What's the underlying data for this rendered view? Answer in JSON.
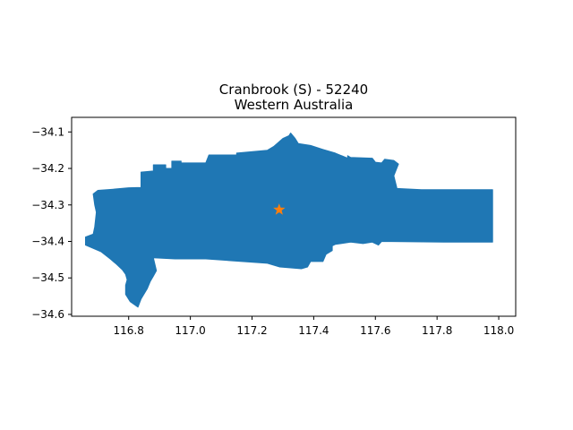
{
  "chart_data": {
    "type": "map",
    "title_line1": "Cranbrook (S) - 52240",
    "title_line2": "Western Australia",
    "xlabel": "",
    "ylabel": "",
    "xlim": [
      116.615,
      118.055
    ],
    "ylim": [
      -34.605,
      -34.06
    ],
    "x_ticks": [
      116.8,
      117.0,
      117.2,
      117.4,
      117.6,
      117.8,
      118.0
    ],
    "x_tick_labels": [
      "116.8",
      "117.0",
      "117.2",
      "117.4",
      "117.6",
      "117.8",
      "118.0"
    ],
    "y_ticks": [
      -34.1,
      -34.2,
      -34.3,
      -34.4,
      -34.5,
      -34.6
    ],
    "y_tick_labels": [
      "−34.1",
      "−34.2",
      "−34.3",
      "−34.4",
      "−34.5",
      "−34.6"
    ],
    "grid": false,
    "region_color": "#1f77b4",
    "marker_color": "#ff7f0e",
    "marker": {
      "shape": "star",
      "lon": 117.288,
      "lat": -34.313
    },
    "region_outline": [
      [
        116.7,
        -34.26
      ],
      [
        116.75,
        -34.257
      ],
      [
        116.8,
        -34.253
      ],
      [
        116.84,
        -34.252
      ],
      [
        116.84,
        -34.21
      ],
      [
        116.88,
        -34.207
      ],
      [
        116.88,
        -34.19
      ],
      [
        116.92,
        -34.19
      ],
      [
        116.92,
        -34.2
      ],
      [
        116.94,
        -34.2
      ],
      [
        116.94,
        -34.18
      ],
      [
        116.97,
        -34.18
      ],
      [
        116.97,
        -34.185
      ],
      [
        117.05,
        -34.185
      ],
      [
        117.06,
        -34.163
      ],
      [
        117.15,
        -34.163
      ],
      [
        117.15,
        -34.158
      ],
      [
        117.25,
        -34.15
      ],
      [
        117.27,
        -34.14
      ],
      [
        117.3,
        -34.118
      ],
      [
        117.32,
        -34.11
      ],
      [
        117.325,
        -34.103
      ],
      [
        117.34,
        -34.118
      ],
      [
        117.35,
        -34.132
      ],
      [
        117.39,
        -34.137
      ],
      [
        117.43,
        -34.148
      ],
      [
        117.47,
        -34.158
      ],
      [
        117.51,
        -34.172
      ],
      [
        117.51,
        -34.165
      ],
      [
        117.52,
        -34.17
      ],
      [
        117.59,
        -34.172
      ],
      [
        117.6,
        -34.183
      ],
      [
        117.62,
        -34.185
      ],
      [
        117.63,
        -34.175
      ],
      [
        117.66,
        -34.178
      ],
      [
        117.675,
        -34.188
      ],
      [
        117.66,
        -34.22
      ],
      [
        117.67,
        -34.255
      ],
      [
        117.75,
        -34.258
      ],
      [
        117.98,
        -34.258
      ],
      [
        117.98,
        -34.402
      ],
      [
        117.82,
        -34.402
      ],
      [
        117.62,
        -34.4
      ],
      [
        117.61,
        -34.41
      ],
      [
        117.59,
        -34.402
      ],
      [
        117.56,
        -34.406
      ],
      [
        117.52,
        -34.402
      ],
      [
        117.47,
        -34.408
      ],
      [
        117.46,
        -34.412
      ],
      [
        117.46,
        -34.425
      ],
      [
        117.44,
        -34.435
      ],
      [
        117.43,
        -34.455
      ],
      [
        117.39,
        -34.455
      ],
      [
        117.38,
        -34.47
      ],
      [
        117.36,
        -34.475
      ],
      [
        117.29,
        -34.47
      ],
      [
        117.25,
        -34.46
      ],
      [
        117.05,
        -34.448
      ],
      [
        116.95,
        -34.448
      ],
      [
        116.88,
        -34.445
      ],
      [
        116.89,
        -34.48
      ],
      [
        116.88,
        -34.495
      ],
      [
        116.87,
        -34.51
      ],
      [
        116.86,
        -34.53
      ],
      [
        116.84,
        -34.558
      ],
      [
        116.83,
        -34.58
      ],
      [
        116.805,
        -34.565
      ],
      [
        116.79,
        -34.545
      ],
      [
        116.79,
        -34.52
      ],
      [
        116.795,
        -34.505
      ],
      [
        116.79,
        -34.49
      ],
      [
        116.78,
        -34.478
      ],
      [
        116.76,
        -34.462
      ],
      [
        116.74,
        -34.448
      ],
      [
        116.71,
        -34.428
      ],
      [
        116.66,
        -34.41
      ],
      [
        116.66,
        -34.388
      ],
      [
        116.685,
        -34.38
      ],
      [
        116.69,
        -34.36
      ],
      [
        116.695,
        -34.32
      ],
      [
        116.69,
        -34.3
      ],
      [
        116.685,
        -34.27
      ]
    ]
  }
}
